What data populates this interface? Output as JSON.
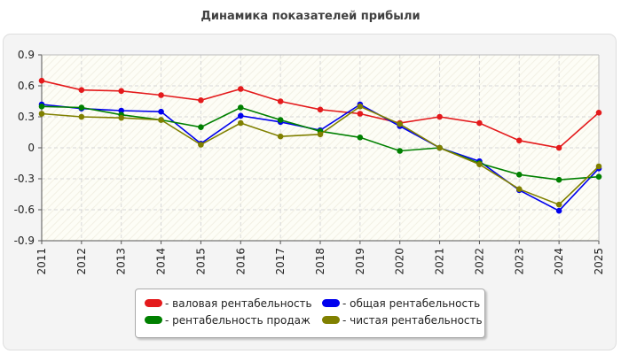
{
  "title": "Динамика показателей прибыли",
  "chart_data": {
    "type": "line",
    "x": [
      "2011",
      "2012",
      "2013",
      "2014",
      "2015",
      "2016",
      "2017",
      "2018",
      "2019",
      "2020",
      "2021",
      "2022",
      "2023",
      "2024",
      "2025"
    ],
    "ylim": [
      -0.9,
      0.9
    ],
    "yticks": [
      "0.9",
      "0.6",
      "0.3",
      "0",
      "-0.3",
      "-0.6",
      "-0.9"
    ],
    "ytick_values": [
      0.9,
      0.6,
      0.3,
      0,
      -0.3,
      -0.6,
      -0.9
    ],
    "grid": true,
    "legend_position": "bottom",
    "series": [
      {
        "name": "- валовая рентабельность",
        "color": "#e41a1c",
        "values": [
          0.65,
          0.56,
          0.55,
          0.51,
          0.46,
          0.57,
          0.45,
          0.37,
          0.33,
          0.24,
          0.3,
          0.24,
          0.07,
          0.0,
          0.34
        ]
      },
      {
        "name": "- общая рентабельность",
        "color": "#0000ee",
        "values": [
          0.42,
          0.38,
          0.36,
          0.35,
          0.04,
          0.31,
          0.25,
          0.17,
          0.42,
          0.21,
          0.0,
          -0.13,
          -0.41,
          -0.61,
          -0.2
        ]
      },
      {
        "name": "- рентабельность продаж",
        "color": "#008000",
        "values": [
          0.4,
          0.39,
          0.32,
          0.27,
          0.2,
          0.39,
          0.27,
          0.16,
          0.1,
          -0.03,
          0.0,
          -0.15,
          -0.26,
          -0.31,
          -0.28
        ]
      },
      {
        "name": "- чистая рентабельность",
        "color": "#808000",
        "values": [
          0.33,
          0.3,
          0.29,
          0.27,
          0.03,
          0.24,
          0.11,
          0.13,
          0.4,
          0.23,
          0.0,
          -0.16,
          -0.4,
          -0.55,
          -0.18
        ]
      }
    ]
  }
}
